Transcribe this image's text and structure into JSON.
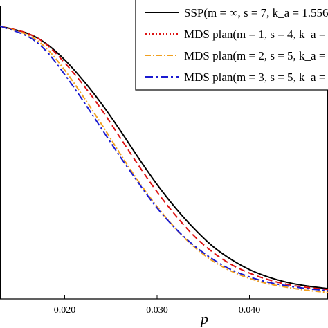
{
  "chart_data": {
    "type": "line",
    "title": "",
    "xlabel": "p",
    "ylabel": "",
    "xlim": [
      0.013,
      0.0485
    ],
    "ylim": [
      0.0,
      1.0
    ],
    "xticks": [
      0.02,
      0.03,
      0.04
    ],
    "xtick_labels": [
      "0.020",
      "0.030",
      "0.040"
    ],
    "grid": false,
    "legend_position": "top-right",
    "series": [
      {
        "name": "SSP(m = ∞, s = 7, k_a = 1.556",
        "color": "#000000",
        "dash": "solid",
        "x": [
          0.013,
          0.016,
          0.018,
          0.02,
          0.022,
          0.024,
          0.026,
          0.028,
          0.03,
          0.032,
          0.034,
          0.036,
          0.038,
          0.04,
          0.042,
          0.044,
          0.046,
          0.0485
        ],
        "y": [
          0.93,
          0.905,
          0.87,
          0.815,
          0.745,
          0.665,
          0.575,
          0.48,
          0.39,
          0.31,
          0.24,
          0.18,
          0.135,
          0.1,
          0.075,
          0.057,
          0.045,
          0.035
        ]
      },
      {
        "name": "MDS plan(m = 1, s = 4, k_a =",
        "color": "#dd1111",
        "dash": "dashed",
        "x": [
          0.013,
          0.016,
          0.018,
          0.02,
          0.022,
          0.024,
          0.026,
          0.028,
          0.03,
          0.032,
          0.034,
          0.036,
          0.038,
          0.04,
          0.042,
          0.044,
          0.046,
          0.0485
        ],
        "y": [
          0.93,
          0.905,
          0.868,
          0.805,
          0.73,
          0.645,
          0.55,
          0.455,
          0.365,
          0.285,
          0.215,
          0.16,
          0.118,
          0.088,
          0.066,
          0.05,
          0.04,
          0.032
        ]
      },
      {
        "name": "MDS plan(m = 2, s = 5, k_a =",
        "color": "#f0a020",
        "dash": "dash-dot",
        "x": [
          0.013,
          0.016,
          0.018,
          0.02,
          0.022,
          0.024,
          0.026,
          0.028,
          0.03,
          0.032,
          0.034,
          0.036,
          0.038,
          0.04,
          0.042,
          0.044,
          0.046,
          0.0485
        ],
        "y": [
          0.93,
          0.9,
          0.855,
          0.78,
          0.69,
          0.595,
          0.495,
          0.4,
          0.315,
          0.24,
          0.178,
          0.13,
          0.095,
          0.07,
          0.052,
          0.04,
          0.03,
          0.022
        ]
      },
      {
        "name": "MDS plan(m = 3, s = 5, k_a =",
        "color": "#1a1ad0",
        "dash": "long-dash-dot",
        "x": [
          0.013,
          0.016,
          0.018,
          0.02,
          0.022,
          0.024,
          0.026,
          0.028,
          0.03,
          0.032,
          0.034,
          0.036,
          0.038,
          0.04,
          0.042,
          0.044,
          0.046,
          0.0485
        ],
        "y": [
          0.93,
          0.895,
          0.845,
          0.765,
          0.675,
          0.58,
          0.485,
          0.395,
          0.31,
          0.24,
          0.182,
          0.136,
          0.1,
          0.075,
          0.057,
          0.045,
          0.036,
          0.028
        ]
      }
    ]
  }
}
